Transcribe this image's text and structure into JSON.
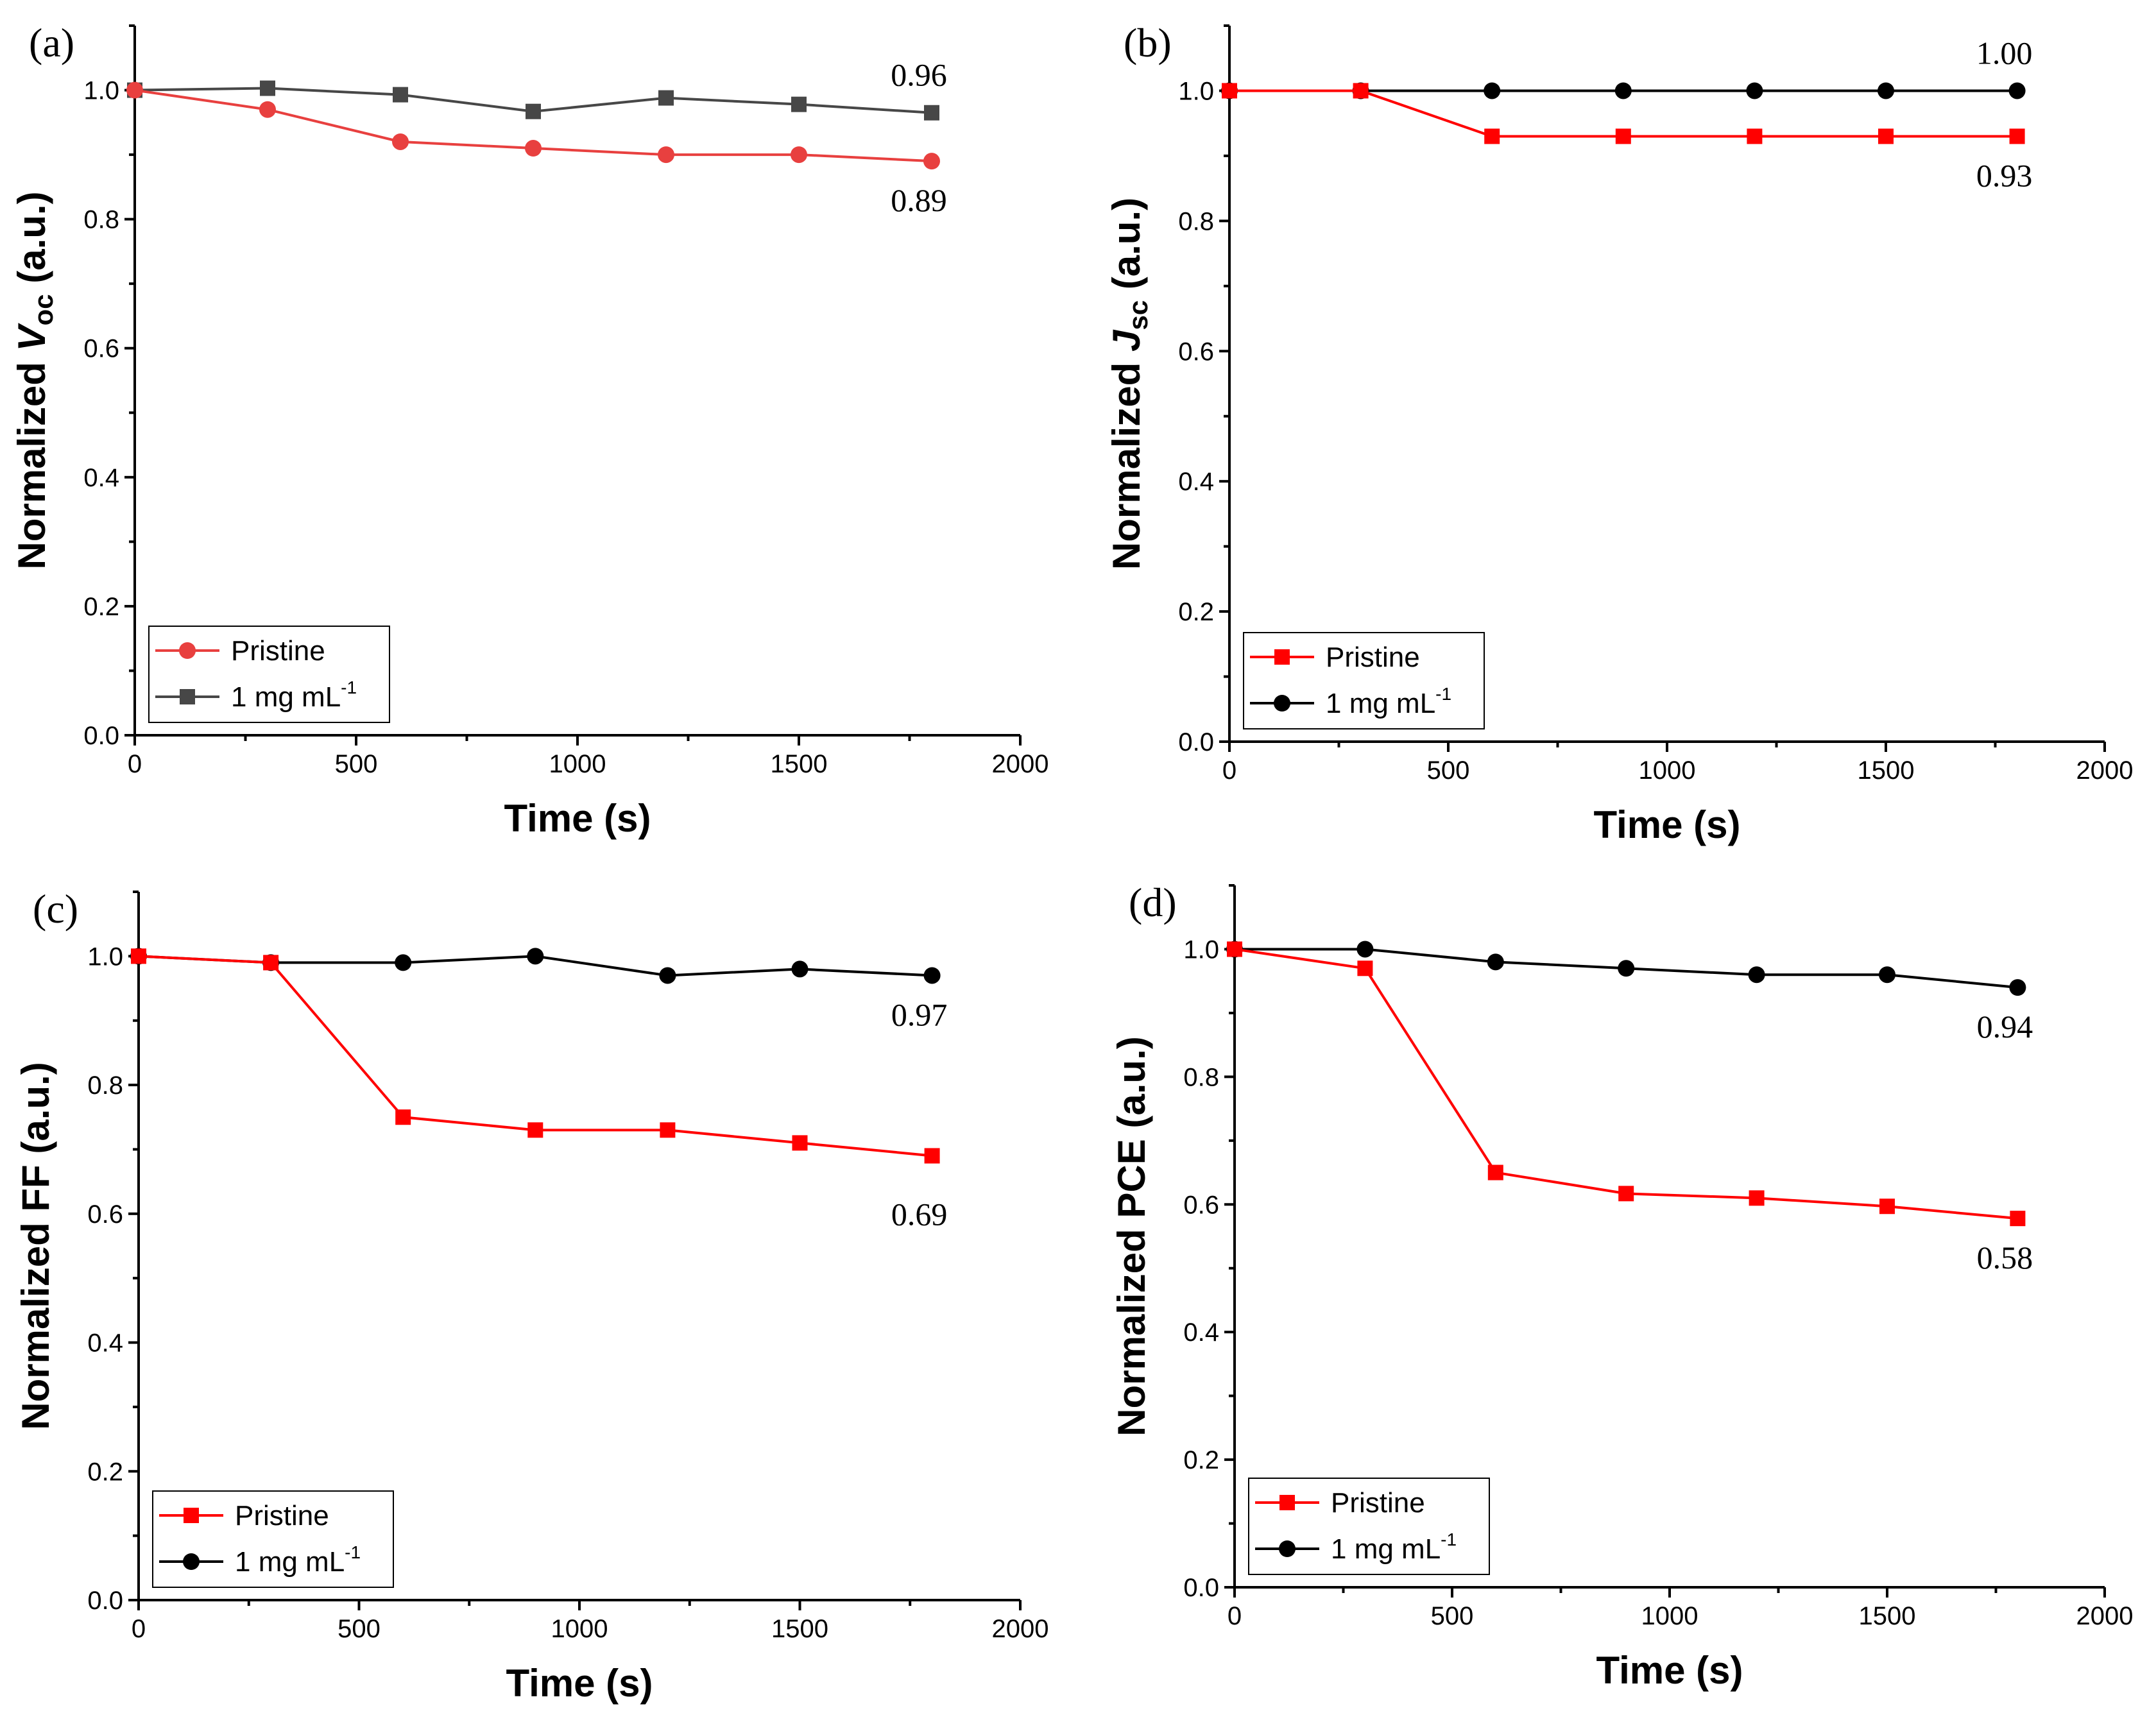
{
  "colors": {
    "pristine_a": "#e8403f",
    "treated_a": "#474747",
    "pristine": "#ff0000",
    "treated": "#000000"
  },
  "chart_data": [
    {
      "type": "line",
      "panel_label": "(a)",
      "xlabel": "Time (s)",
      "ylabel_prefix": "Normalized ",
      "ylabel_symbol": "V",
      "ylabel_sub": "oc",
      "ylabel_suffix": " (a.u.)",
      "xlim": [
        0,
        2000
      ],
      "ylim": [
        0,
        1.1
      ],
      "xticks": [
        "0",
        "500",
        "1000",
        "1500",
        "2000"
      ],
      "yticks": [
        "0.0",
        "0.2",
        "0.4",
        "0.6",
        "0.8",
        "1.0"
      ],
      "x": [
        0,
        300,
        600,
        900,
        1200,
        1500,
        1800
      ],
      "series": [
        {
          "name": "Pristine",
          "marker": "circle",
          "color_key": "pristine_a",
          "values": [
            1.0,
            0.97,
            0.92,
            0.91,
            0.9,
            0.9,
            0.89
          ]
        },
        {
          "name": "1 mg mL",
          "sup": "-1",
          "marker": "square",
          "color_key": "treated_a",
          "values": [
            1.0,
            1.003,
            0.993,
            0.967,
            0.988,
            0.978,
            0.965
          ]
        }
      ],
      "annotations": [
        {
          "text": "0.96",
          "series": 1,
          "position": "above"
        },
        {
          "text": "0.89",
          "series": 0,
          "position": "below"
        }
      ],
      "legend_position": "lower-left"
    },
    {
      "type": "line",
      "panel_label": "(b)",
      "xlabel": "Time (s)",
      "ylabel_prefix": "Normalized ",
      "ylabel_symbol": "J",
      "ylabel_sub": "sc",
      "ylabel_suffix": " (a.u.)",
      "xlim": [
        0,
        2000
      ],
      "ylim": [
        0,
        1.1
      ],
      "xticks": [
        "0",
        "500",
        "1000",
        "1500",
        "2000"
      ],
      "yticks": [
        "0.0",
        "0.2",
        "0.4",
        "0.6",
        "0.8",
        "1.0"
      ],
      "x": [
        0,
        300,
        600,
        900,
        1200,
        1500,
        1800
      ],
      "series": [
        {
          "name": "Pristine",
          "marker": "square",
          "color_key": "pristine",
          "values": [
            1.0,
            1.0,
            0.93,
            0.93,
            0.93,
            0.93,
            0.93
          ]
        },
        {
          "name": "1 mg mL",
          "sup": "-1",
          "marker": "circle",
          "color_key": "treated",
          "values": [
            1.0,
            1.0,
            1.0,
            1.0,
            1.0,
            1.0,
            1.0
          ]
        }
      ],
      "annotations": [
        {
          "text": "1.00",
          "series": 1,
          "position": "above"
        },
        {
          "text": "0.93",
          "series": 0,
          "position": "below"
        }
      ],
      "legend_position": "lower-left"
    },
    {
      "type": "line",
      "panel_label": "(c)",
      "xlabel": "Time (s)",
      "ylabel_prefix": "Normalized FF (a.u.)",
      "ylabel_symbol": "",
      "ylabel_sub": "",
      "ylabel_suffix": "",
      "xlim": [
        0,
        2000
      ],
      "ylim": [
        0,
        1.1
      ],
      "xticks": [
        "0",
        "500",
        "1000",
        "1500",
        "2000"
      ],
      "yticks": [
        "0.0",
        "0.2",
        "0.4",
        "0.6",
        "0.8",
        "1.0"
      ],
      "x": [
        0,
        300,
        600,
        900,
        1200,
        1500,
        1800
      ],
      "series": [
        {
          "name": "Pristine",
          "marker": "square",
          "color_key": "pristine",
          "values": [
            1.0,
            0.99,
            0.75,
            0.73,
            0.73,
            0.71,
            0.69
          ]
        },
        {
          "name": "1 mg mL",
          "sup": "-1",
          "marker": "circle",
          "color_key": "treated",
          "values": [
            1.0,
            0.99,
            0.99,
            1.0,
            0.97,
            0.98,
            0.97
          ]
        }
      ],
      "annotations": [
        {
          "text": "0.97",
          "series": 1,
          "position": "below"
        },
        {
          "text": "0.69",
          "series": 0,
          "position": "below-far"
        }
      ],
      "legend_position": "lower-left"
    },
    {
      "type": "line",
      "panel_label": "(d)",
      "xlabel": "Time (s)",
      "ylabel_prefix": "Normalized PCE (a.u.)",
      "ylabel_symbol": "",
      "ylabel_sub": "",
      "ylabel_suffix": "",
      "xlim": [
        0,
        2000
      ],
      "ylim": [
        0,
        1.1
      ],
      "xticks": [
        "0",
        "500",
        "1000",
        "1500",
        "2000"
      ],
      "yticks": [
        "0.0",
        "0.2",
        "0.4",
        "0.6",
        "0.8",
        "1.0"
      ],
      "x": [
        0,
        300,
        600,
        900,
        1200,
        1500,
        1800
      ],
      "series": [
        {
          "name": "Pristine",
          "marker": "square",
          "color_key": "pristine",
          "values": [
            1.0,
            0.97,
            0.65,
            0.617,
            0.61,
            0.597,
            0.578
          ]
        },
        {
          "name": "1 mg mL",
          "sup": "-1",
          "marker": "circle",
          "color_key": "treated",
          "values": [
            1.0,
            1.0,
            0.98,
            0.97,
            0.96,
            0.96,
            0.94
          ]
        }
      ],
      "annotations": [
        {
          "text": "0.94",
          "series": 1,
          "position": "below"
        },
        {
          "text": "0.58",
          "series": 0,
          "position": "below"
        }
      ],
      "legend_position": "lower-left"
    }
  ]
}
